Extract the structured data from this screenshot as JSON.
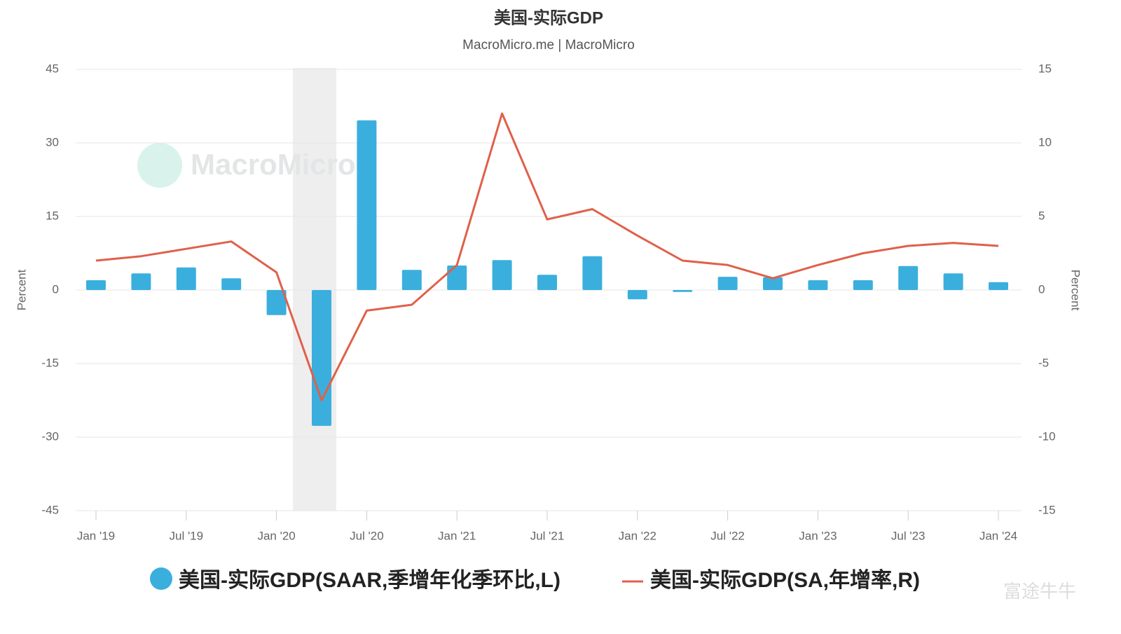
{
  "chart_data": {
    "type": "bar",
    "title": "美国-实际GDP",
    "subtitle": "MacroMicro.me | MacroMicro",
    "categories": [
      "Jan '19",
      null,
      "Jul '19",
      null,
      "Jan '20",
      null,
      "Jul '20",
      null,
      "Jan '21",
      null,
      "Jul '21",
      null,
      "Jan '22",
      null,
      "Jul '22",
      null,
      "Jan '23",
      null,
      "Jul '23",
      null,
      "Jan '24"
    ],
    "series": [
      {
        "name": "美国-实际GDP(SAAR,季增年化季环比,L)",
        "type": "bar",
        "axis": "y",
        "color": "#3aafdd",
        "values": [
          2.0,
          3.4,
          4.6,
          2.4,
          -5.1,
          -27.7,
          34.6,
          4.1,
          5.0,
          6.1,
          3.1,
          6.9,
          -1.9,
          -0.4,
          2.7,
          2.6,
          2.0,
          2.0,
          4.9,
          3.4,
          1.6
        ]
      },
      {
        "name": "美国-实际GDP(SA,年增率,R)",
        "type": "line",
        "axis": "y2",
        "color": "#e0604a",
        "values": [
          2.0,
          2.3,
          2.8,
          3.3,
          1.2,
          -7.5,
          -1.4,
          -1.0,
          1.7,
          12.0,
          4.8,
          5.5,
          3.7,
          2.0,
          1.7,
          0.8,
          1.7,
          2.5,
          3.0,
          3.2,
          3.0
        ]
      }
    ],
    "y_label": "Percent",
    "y2_label": "Percent",
    "ylim": [
      -45,
      45
    ],
    "yticks": [
      45,
      30,
      15,
      0,
      -15,
      -30,
      -45
    ],
    "y2lim": [
      -15,
      15
    ],
    "y2ticks": [
      15,
      10,
      5,
      0,
      -5,
      -10,
      -15
    ],
    "grid": true,
    "legend": "bottom",
    "watermarks": [
      "MacroMicro",
      "富途牛牛"
    ]
  }
}
